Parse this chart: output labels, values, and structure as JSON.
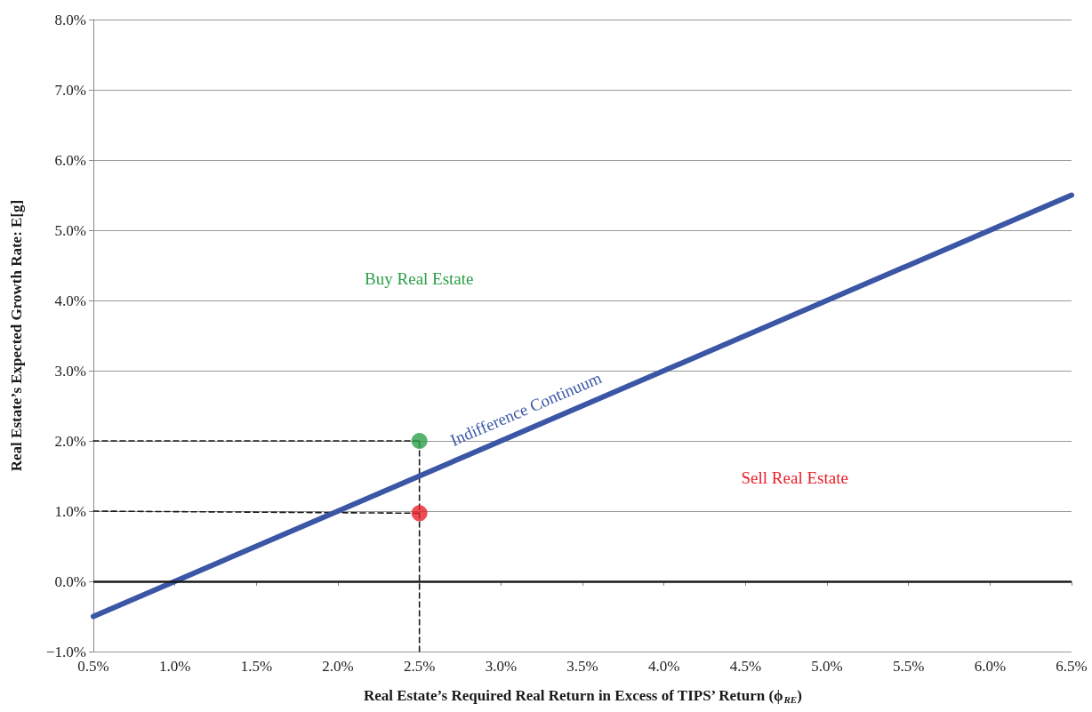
{
  "chart_data": {
    "type": "line",
    "xlabel": "Real Estate’s Required Real Return in Excess of TIPS’ Return (ϕ$_{RE}$)",
    "ylabel": "Real Estate’s Expected Growth Rate: E[g]",
    "xlim": [
      0.5,
      6.5
    ],
    "xticks": [
      {
        "value": 0.5,
        "label": "0.5%"
      },
      {
        "value": 1,
        "label": "1.0%"
      },
      {
        "value": 1.5,
        "label": "1.5%"
      },
      {
        "value": 2,
        "label": "2.0%"
      },
      {
        "value": 2.5,
        "label": "2.5%"
      },
      {
        "value": 3,
        "label": "3.0%"
      },
      {
        "value": 3.5,
        "label": "3.5%"
      },
      {
        "value": 4,
        "label": "4.0%"
      },
      {
        "value": 4.5,
        "label": "4.5%"
      },
      {
        "value": 5,
        "label": "5.0%"
      },
      {
        "value": 5.5,
        "label": "5.5%"
      },
      {
        "value": 6,
        "label": "6.0%"
      },
      {
        "value": 6.5,
        "label": "6.5%"
      }
    ],
    "ylim": [
      -1,
      8
    ],
    "yticks": [
      {
        "value": -1,
        "label": "−1.0%"
      },
      {
        "value": 0,
        "label": "0.0%"
      },
      {
        "value": 1,
        "label": "1.0%"
      },
      {
        "value": 2,
        "label": "2.0%"
      },
      {
        "value": 3,
        "label": "3.0%"
      },
      {
        "value": 4,
        "label": "4.0%"
      },
      {
        "value": 5,
        "label": "5.0%"
      },
      {
        "value": 6,
        "label": "6.0%"
      },
      {
        "value": 7,
        "label": "7.0%"
      },
      {
        "value": 8,
        "label": "8.0%"
      }
    ],
    "grid": "y",
    "legend": false,
    "ref_lines": [
      {
        "axis": "y",
        "value": 0,
        "color": "#1a1a1a"
      }
    ],
    "annotations": [
      "Buy Real Estate",
      "Sell Real Estate"
    ],
    "series": [
      {
        "name": "Indifference Continuum",
        "color": "#3a56a5",
        "x": [
          0.5,
          6.5
        ],
        "values": [
          -0.5,
          5.5
        ],
        "marker": "none",
        "line_style": "solid"
      },
      {
        "type": "scatter",
        "color": "#2ca048",
        "x": [
          2.5
        ],
        "values": [
          2.0
        ],
        "marker": "circle"
      },
      {
        "type": "scatter",
        "color": "#e8202a",
        "x": [
          2.5
        ],
        "values": [
          0.97
        ],
        "marker": "circle"
      },
      {
        "type": "line",
        "color": "#1a1a1a",
        "x": [
          0.5,
          2.5
        ],
        "values": [
          2.0,
          2.0
        ],
        "marker": "none",
        "line_style": "dashed"
      },
      {
        "type": "line",
        "color": "#1a1a1a",
        "x": [
          0.5,
          2.5
        ],
        "values": [
          1.0,
          0.97
        ],
        "marker": "none",
        "line_style": "dashed"
      },
      {
        "type": "line",
        "color": "#1a1a1a",
        "x": [
          2.5,
          2.5
        ],
        "values": [
          -1,
          2.0
        ],
        "marker": "none",
        "line_style": "dashed"
      }
    ]
  }
}
